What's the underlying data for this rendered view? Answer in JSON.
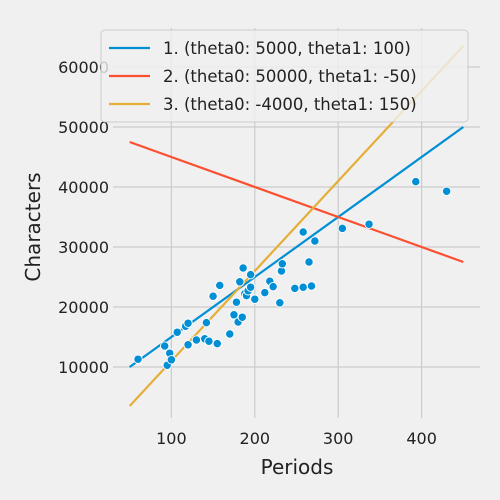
{
  "chart_data": {
    "type": "scatter",
    "title": "",
    "xlabel": "Periods",
    "ylabel": "Characters",
    "xlim": [
      30,
      470
    ],
    "ylim": [
      1500,
      66500
    ],
    "x_ticks": [
      100,
      200,
      300,
      400
    ],
    "y_ticks": [
      10000,
      20000,
      30000,
      40000,
      50000,
      60000
    ],
    "grid": true,
    "legend_position": "top",
    "background_color": "#f0f0f0",
    "grid_color": "#cbcbcb",
    "points_color": "#008fd5",
    "points": [
      [
        60,
        11300
      ],
      [
        92,
        13500
      ],
      [
        95,
        10300
      ],
      [
        98,
        12300
      ],
      [
        100,
        11200
      ],
      [
        107,
        15800
      ],
      [
        117,
        16800
      ],
      [
        120,
        17300
      ],
      [
        120,
        13700
      ],
      [
        130,
        14500
      ],
      [
        140,
        14700
      ],
      [
        142,
        17400
      ],
      [
        145,
        14300
      ],
      [
        150,
        21800
      ],
      [
        155,
        13900
      ],
      [
        158,
        23600
      ],
      [
        170,
        15500
      ],
      [
        175,
        18700
      ],
      [
        178,
        20800
      ],
      [
        180,
        17500
      ],
      [
        182,
        24200
      ],
      [
        185,
        18300
      ],
      [
        186,
        26500
      ],
      [
        188,
        22200
      ],
      [
        190,
        21900
      ],
      [
        192,
        22700
      ],
      [
        195,
        23300
      ],
      [
        195,
        25400
      ],
      [
        200,
        21300
      ],
      [
        212,
        22400
      ],
      [
        218,
        24300
      ],
      [
        222,
        23400
      ],
      [
        230,
        20700
      ],
      [
        232,
        26000
      ],
      [
        233,
        27200
      ],
      [
        248,
        23100
      ],
      [
        258,
        32500
      ],
      [
        258,
        23300
      ],
      [
        265,
        27500
      ],
      [
        268,
        23500
      ],
      [
        272,
        31000
      ],
      [
        305,
        33100
      ],
      [
        337,
        33800
      ],
      [
        393,
        40900
      ],
      [
        430,
        39300
      ]
    ],
    "series": [
      {
        "name": "1. (theta0: 5000, theta1: 100)",
        "theta0": 5000,
        "theta1": 100,
        "x_range": [
          50,
          450
        ],
        "color": "#008fd5"
      },
      {
        "name": "2. (theta0: 50000, theta1: -50)",
        "theta0": 50000,
        "theta1": -50,
        "x_range": [
          50,
          450
        ],
        "color": "#fc4f30"
      },
      {
        "name": "3. (theta0: -4000, theta1: 150)",
        "theta0": -4000,
        "theta1": 150,
        "x_range": [
          50,
          450
        ],
        "color": "#e5ae38"
      }
    ]
  }
}
